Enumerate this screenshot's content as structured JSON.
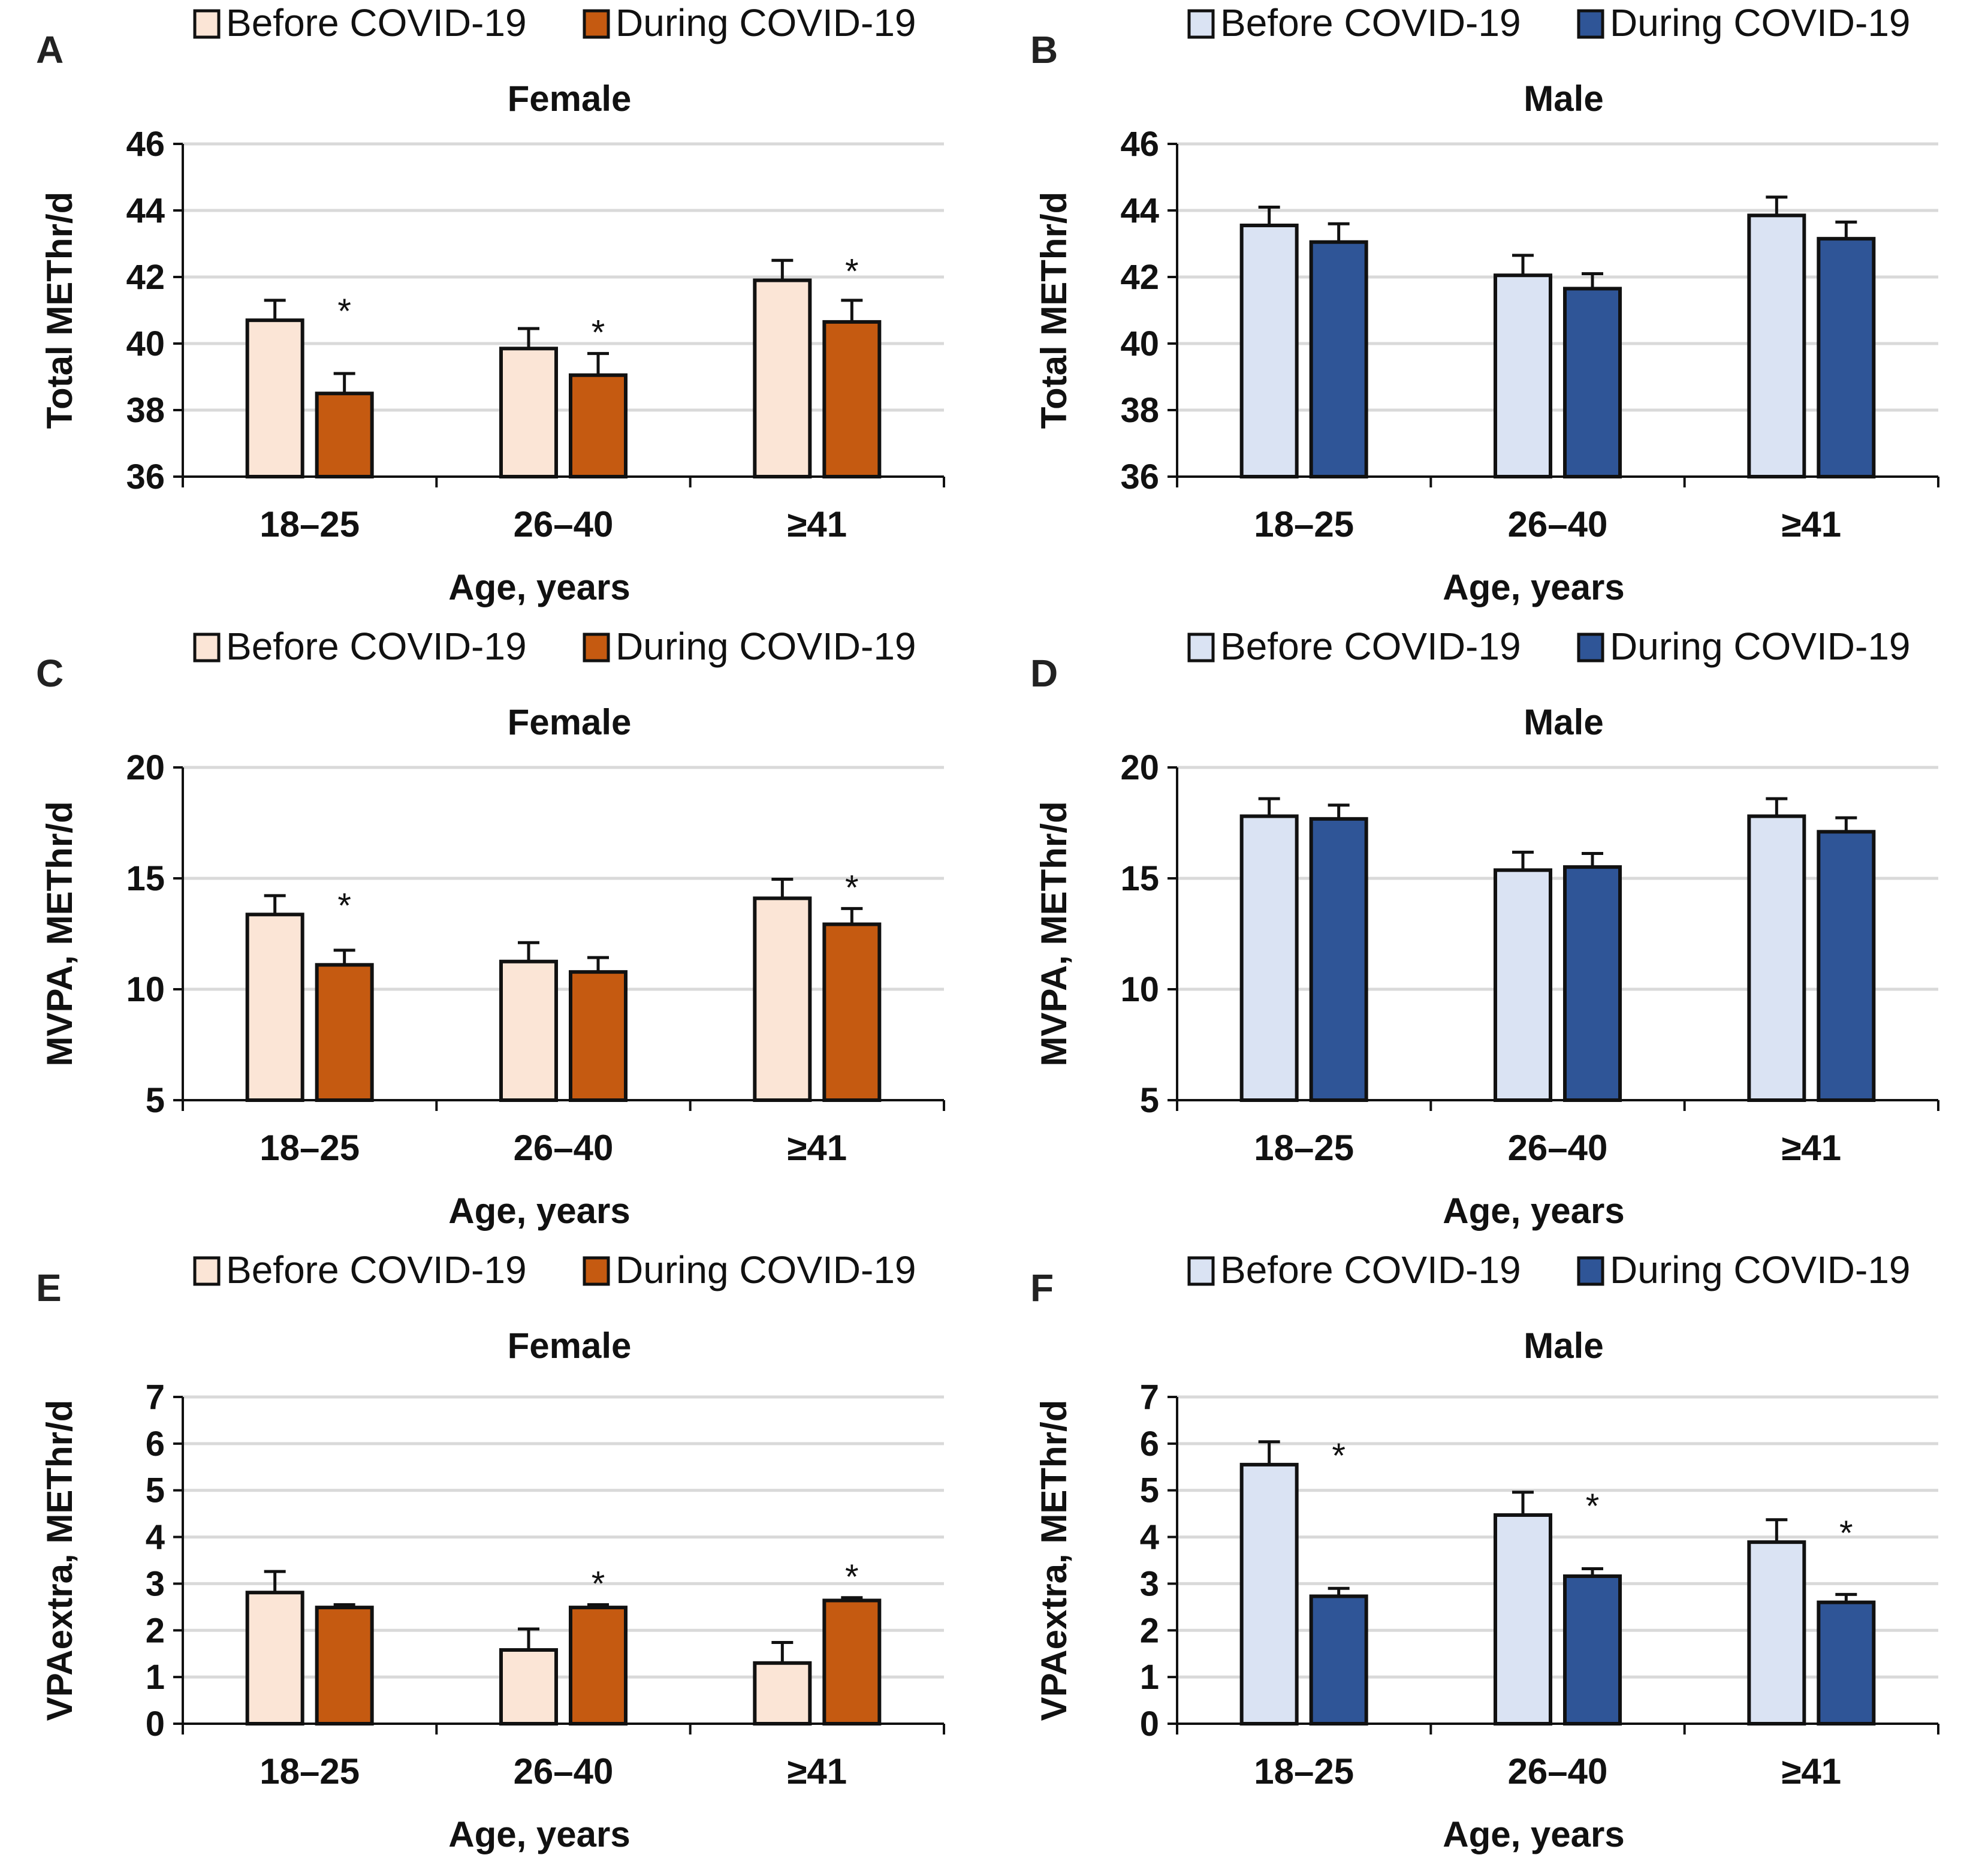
{
  "legend": {
    "before": "Before COVID-19",
    "during": "During COVID-19"
  },
  "colors": {
    "female_before": "#FBE5D6",
    "female_during": "#C55A11",
    "male_before": "#DAE3F3",
    "male_during": "#2F5597",
    "gridline": "#D9D9D9",
    "outline": "#111111"
  },
  "chart_data": [
    {
      "panel": "A",
      "type": "bar",
      "title": "Female",
      "xlabel": "Age, years",
      "ylabel": "Total METhr/d",
      "categories": [
        "18–25",
        "26–40",
        "≥41"
      ],
      "ylim": [
        36,
        46
      ],
      "yticks": [
        36,
        38,
        40,
        42,
        44,
        46
      ],
      "grid": true,
      "legend_position": "top",
      "palette": "female",
      "series": [
        {
          "name": "Before COVID-19",
          "values": [
            40.7,
            39.85,
            41.9
          ],
          "error_upper": [
            41.3,
            40.45,
            42.5
          ]
        },
        {
          "name": "During COVID-19",
          "values": [
            38.5,
            39.05,
            40.65
          ],
          "error_upper": [
            39.1,
            39.7,
            41.3
          ]
        }
      ],
      "significance": [
        true,
        true,
        true
      ]
    },
    {
      "panel": "B",
      "type": "bar",
      "title": "Male",
      "xlabel": "Age, years",
      "ylabel": "Total METhr/d",
      "categories": [
        "18–25",
        "26–40",
        "≥41"
      ],
      "ylim": [
        36,
        46
      ],
      "yticks": [
        36,
        38,
        40,
        42,
        44,
        46
      ],
      "grid": true,
      "legend_position": "top",
      "palette": "male",
      "series": [
        {
          "name": "Before COVID-19",
          "values": [
            43.55,
            42.05,
            43.85
          ],
          "error_upper": [
            44.1,
            42.65,
            44.4
          ]
        },
        {
          "name": "During COVID-19",
          "values": [
            43.05,
            41.65,
            43.15
          ],
          "error_upper": [
            43.6,
            42.1,
            43.65
          ]
        }
      ],
      "significance": [
        false,
        false,
        false
      ]
    },
    {
      "panel": "C",
      "type": "bar",
      "title": "Female",
      "xlabel": "Age, years",
      "ylabel": "MVPA, METhr/d",
      "categories": [
        "18–25",
        "26–40",
        "≥41"
      ],
      "ylim": [
        5,
        20
      ],
      "yticks": [
        5,
        10,
        15,
        20
      ],
      "grid": true,
      "legend_position": "top",
      "palette": "female",
      "series": [
        {
          "name": "Before COVID-19",
          "values": [
            13.37,
            11.25,
            14.1
          ],
          "error_upper": [
            14.22,
            12.1,
            14.96
          ]
        },
        {
          "name": "During COVID-19",
          "values": [
            11.1,
            10.78,
            12.93
          ],
          "error_upper": [
            11.76,
            11.43,
            13.64
          ]
        }
      ],
      "significance": [
        true,
        false,
        true
      ]
    },
    {
      "panel": "D",
      "type": "bar",
      "title": "Male",
      "xlabel": "Age, years",
      "ylabel": "MVPA, METhr/d",
      "categories": [
        "18–25",
        "26–40",
        "≥41"
      ],
      "ylim": [
        5,
        20
      ],
      "yticks": [
        5,
        10,
        15,
        20
      ],
      "grid": true,
      "legend_position": "top",
      "palette": "male",
      "series": [
        {
          "name": "Before COVID-19",
          "values": [
            17.8,
            15.37,
            17.8
          ],
          "error_upper": [
            18.59,
            16.18,
            18.59
          ]
        },
        {
          "name": "During COVID-19",
          "values": [
            17.68,
            15.51,
            17.1
          ],
          "error_upper": [
            18.3,
            16.12,
            17.73
          ]
        }
      ],
      "significance": [
        false,
        false,
        false
      ]
    },
    {
      "panel": "E",
      "type": "bar",
      "title": "Female",
      "xlabel": "Age, years",
      "ylabel": "VPAextra, METhr/d",
      "categories": [
        "18–25",
        "26–40",
        "≥41"
      ],
      "ylim": [
        0,
        7
      ],
      "yticks": [
        0,
        1,
        2,
        3,
        4,
        5,
        6,
        7
      ],
      "grid": true,
      "legend_position": "top",
      "palette": "female",
      "series": [
        {
          "name": "Before COVID-19",
          "values": [
            2.81,
            1.58,
            1.3
          ],
          "error_upper": [
            3.26,
            2.03,
            1.74
          ]
        },
        {
          "name": "During COVID-19",
          "values": [
            2.49,
            2.49,
            2.64
          ],
          "error_upper": [
            2.55,
            2.55,
            2.7
          ]
        }
      ],
      "significance": [
        false,
        true,
        true
      ]
    },
    {
      "panel": "F",
      "type": "bar",
      "title": "Male",
      "xlabel": "Age, years",
      "ylabel": "VPAextra, METhr/d",
      "categories": [
        "18–25",
        "26–40",
        "≥41"
      ],
      "ylim": [
        0,
        7
      ],
      "yticks": [
        0,
        1,
        2,
        3,
        4,
        5,
        6,
        7
      ],
      "grid": true,
      "legend_position": "top",
      "palette": "male",
      "series": [
        {
          "name": "Before COVID-19",
          "values": [
            5.55,
            4.47,
            3.89
          ],
          "error_upper": [
            6.04,
            4.96,
            4.37
          ]
        },
        {
          "name": "During COVID-19",
          "values": [
            2.73,
            3.16,
            2.6
          ],
          "error_upper": [
            2.9,
            3.32,
            2.77
          ]
        }
      ],
      "significance": [
        true,
        true,
        true
      ]
    }
  ]
}
